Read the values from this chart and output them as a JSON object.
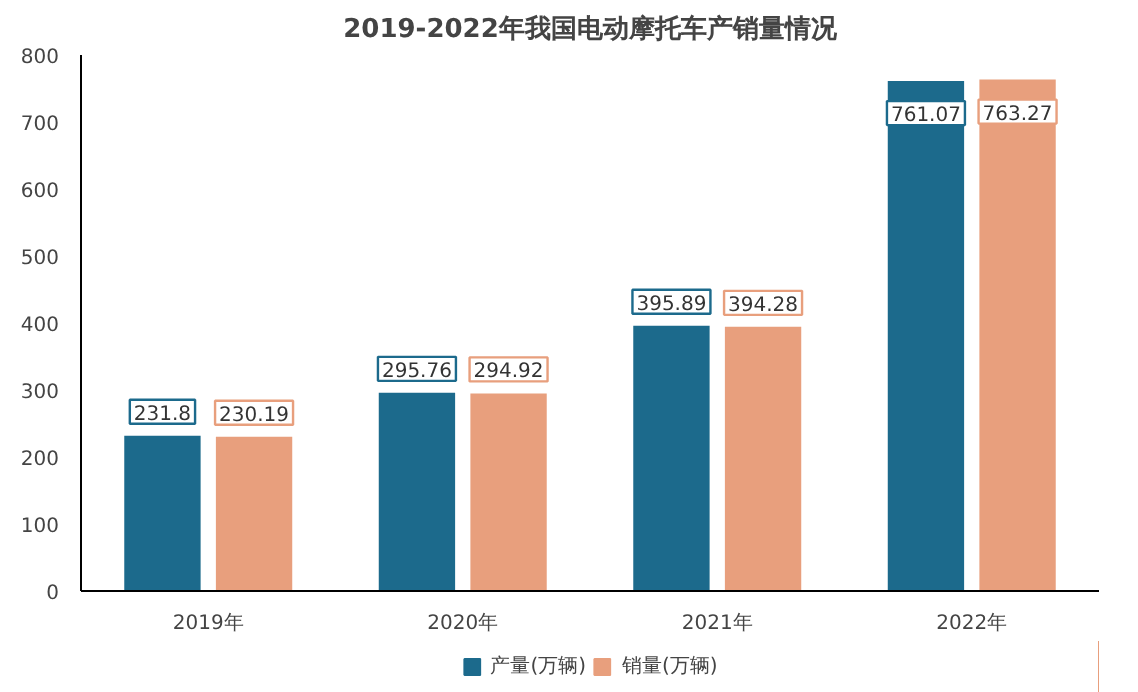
{
  "chart_data": {
    "type": "bar",
    "title": "2019-2022年我国电动摩托车产销量情况",
    "categories": [
      "2019年",
      "2020年",
      "2021年",
      "2022年"
    ],
    "series": [
      {
        "name": "产量(万辆)",
        "color": "#1c6a8c",
        "values": [
          231.8,
          295.76,
          395.89,
          761.07
        ]
      },
      {
        "name": "销量(万辆)",
        "color": "#e89f7d",
        "values": [
          230.19,
          294.92,
          394.28,
          763.27
        ]
      }
    ],
    "ylim": [
      0,
      800
    ],
    "yticks": [
      0,
      100,
      200,
      300,
      400,
      500,
      600,
      700,
      800
    ],
    "data_labels": true,
    "grid": false,
    "legend": "bottom"
  }
}
